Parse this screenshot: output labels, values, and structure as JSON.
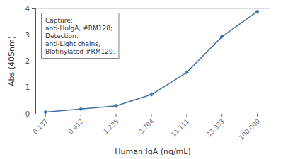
{
  "chart_data": {
    "type": "line",
    "x": [
      100.0,
      33.333,
      11.111,
      3.704,
      1.235,
      0.412,
      0.137
    ],
    "values": [
      3.88,
      2.93,
      1.57,
      0.73,
      0.3,
      0.18,
      0.07
    ],
    "color": "#4472a8",
    "marker": "diamond",
    "xlabel": "Human IgA (ng/mL)",
    "ylabel": "Abs (405nm)",
    "log": "x",
    "xlim": [
      0.1,
      150
    ],
    "xticks": [
      {
        "value": 100.0,
        "label": "100.000"
      },
      {
        "value": 33.333,
        "label": "33.333"
      },
      {
        "value": 11.111,
        "label": "11.111"
      },
      {
        "value": 3.704,
        "label": "3.704"
      },
      {
        "value": 1.235,
        "label": "1.235"
      },
      {
        "value": 0.412,
        "label": "0.412"
      },
      {
        "value": 0.137,
        "label": "0.137"
      }
    ],
    "ylim": [
      0,
      4.0
    ],
    "yticks": [
      0,
      1,
      2,
      3,
      4
    ],
    "grid": true,
    "annotation": "Capture:\nanti-HuIgA, #RM128;\nDetection:\nanti-Light chains,\nBlotinylated #RM129."
  }
}
